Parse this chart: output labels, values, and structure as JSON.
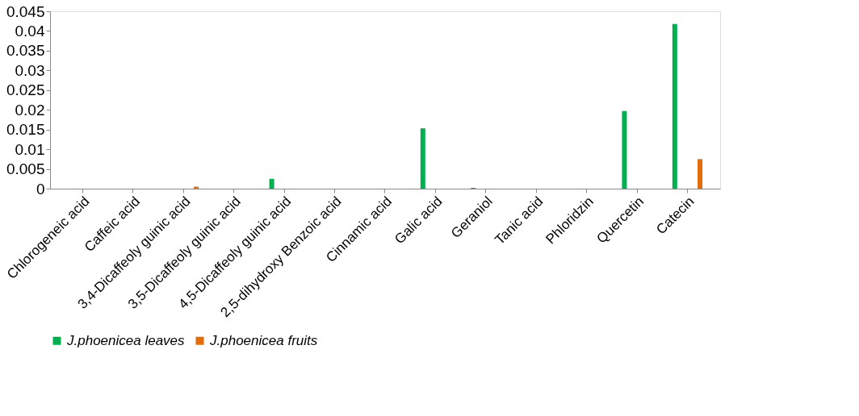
{
  "chart_data": {
    "type": "bar",
    "categories": [
      "Chlorogeneic acid",
      "Caffeic acid",
      "3,4-Dicaffeoly guinic acid",
      "3,5-Dicaffeoly guinic acid",
      "4,5-Dicaffeoly guinic acid",
      "2,5-dihydroxy Benzoic acid",
      "Cinnamic acid",
      "Galic acid",
      "Geraniol",
      "Tanic acid",
      "Phloridzin",
      "Quercetin",
      "Catecin"
    ],
    "series": [
      {
        "name": "J.phoenicea leaves",
        "color": "#00b050",
        "values": [
          0,
          0,
          0,
          0,
          0.0025,
          0,
          0,
          0.0153,
          0.0002,
          0,
          0,
          0.0197,
          0.0418
        ]
      },
      {
        "name": "J.phoenicea fruits",
        "color": "#e46c0a",
        "values": [
          0,
          0,
          0.0005,
          0,
          0,
          0,
          0,
          0,
          0,
          0,
          0,
          0,
          0.0075
        ]
      }
    ],
    "ylim": [
      0,
      0.045
    ],
    "yticks": [
      0,
      0.005,
      0.01,
      0.015,
      0.02,
      0.025,
      0.03,
      0.035,
      0.04,
      0.045
    ],
    "grid": false,
    "legend": "bottom"
  }
}
